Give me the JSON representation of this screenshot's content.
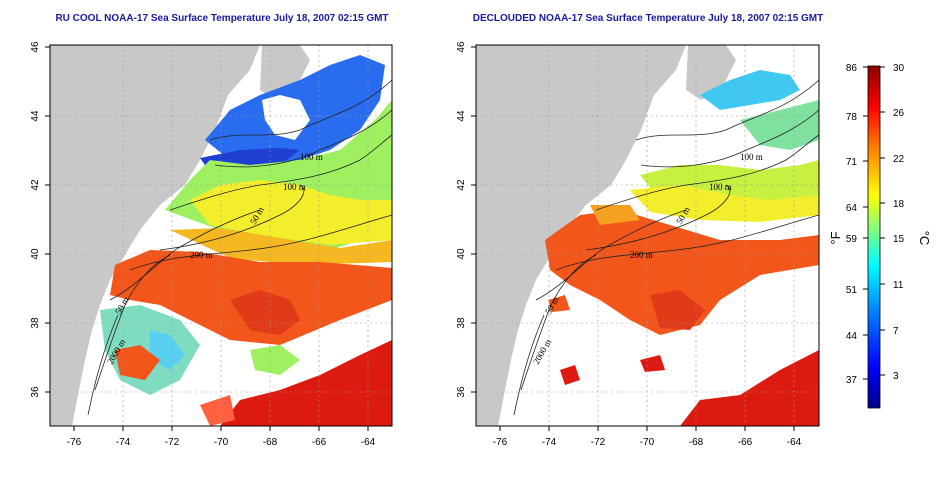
{
  "maps": [
    {
      "title": "RU COOL NOAA-17 Sea Surface Temperature July 18, 2007 02:15 GMT",
      "contour_labels": [
        "100 m",
        "100 m",
        "50 m",
        "200 m",
        "50 m",
        "2000 m"
      ]
    },
    {
      "title": "DECLOUDED NOAA-17 Sea Surface Temperature July 18, 2007 02:15 GMT",
      "contour_labels": [
        "100 m",
        "100 m",
        "50 m",
        "200 m",
        "50 m",
        "2000 m"
      ]
    }
  ],
  "axes": {
    "x_ticks": [
      "-76",
      "-74",
      "-72",
      "-70",
      "-68",
      "-66",
      "-64"
    ],
    "y_ticks": [
      "46",
      "44",
      "42",
      "40",
      "38",
      "36"
    ],
    "x_range": [
      -77,
      -63
    ],
    "y_range": [
      35,
      46
    ]
  },
  "colorbar": {
    "fahrenheit_ticks": [
      "86",
      "78",
      "71",
      "64",
      "59",
      "51",
      "44",
      "37"
    ],
    "celsius_ticks": [
      "30",
      "26",
      "22",
      "18",
      "15",
      "11",
      "7",
      "3"
    ],
    "fahrenheit_unit": "°F",
    "celsius_unit": "°C",
    "range_c": [
      0,
      30
    ],
    "colors": [
      "#00008b",
      "#0000ff",
      "#0080ff",
      "#00ffff",
      "#7fff7f",
      "#ffff00",
      "#ff8000",
      "#ff0000",
      "#8b0000"
    ]
  }
}
